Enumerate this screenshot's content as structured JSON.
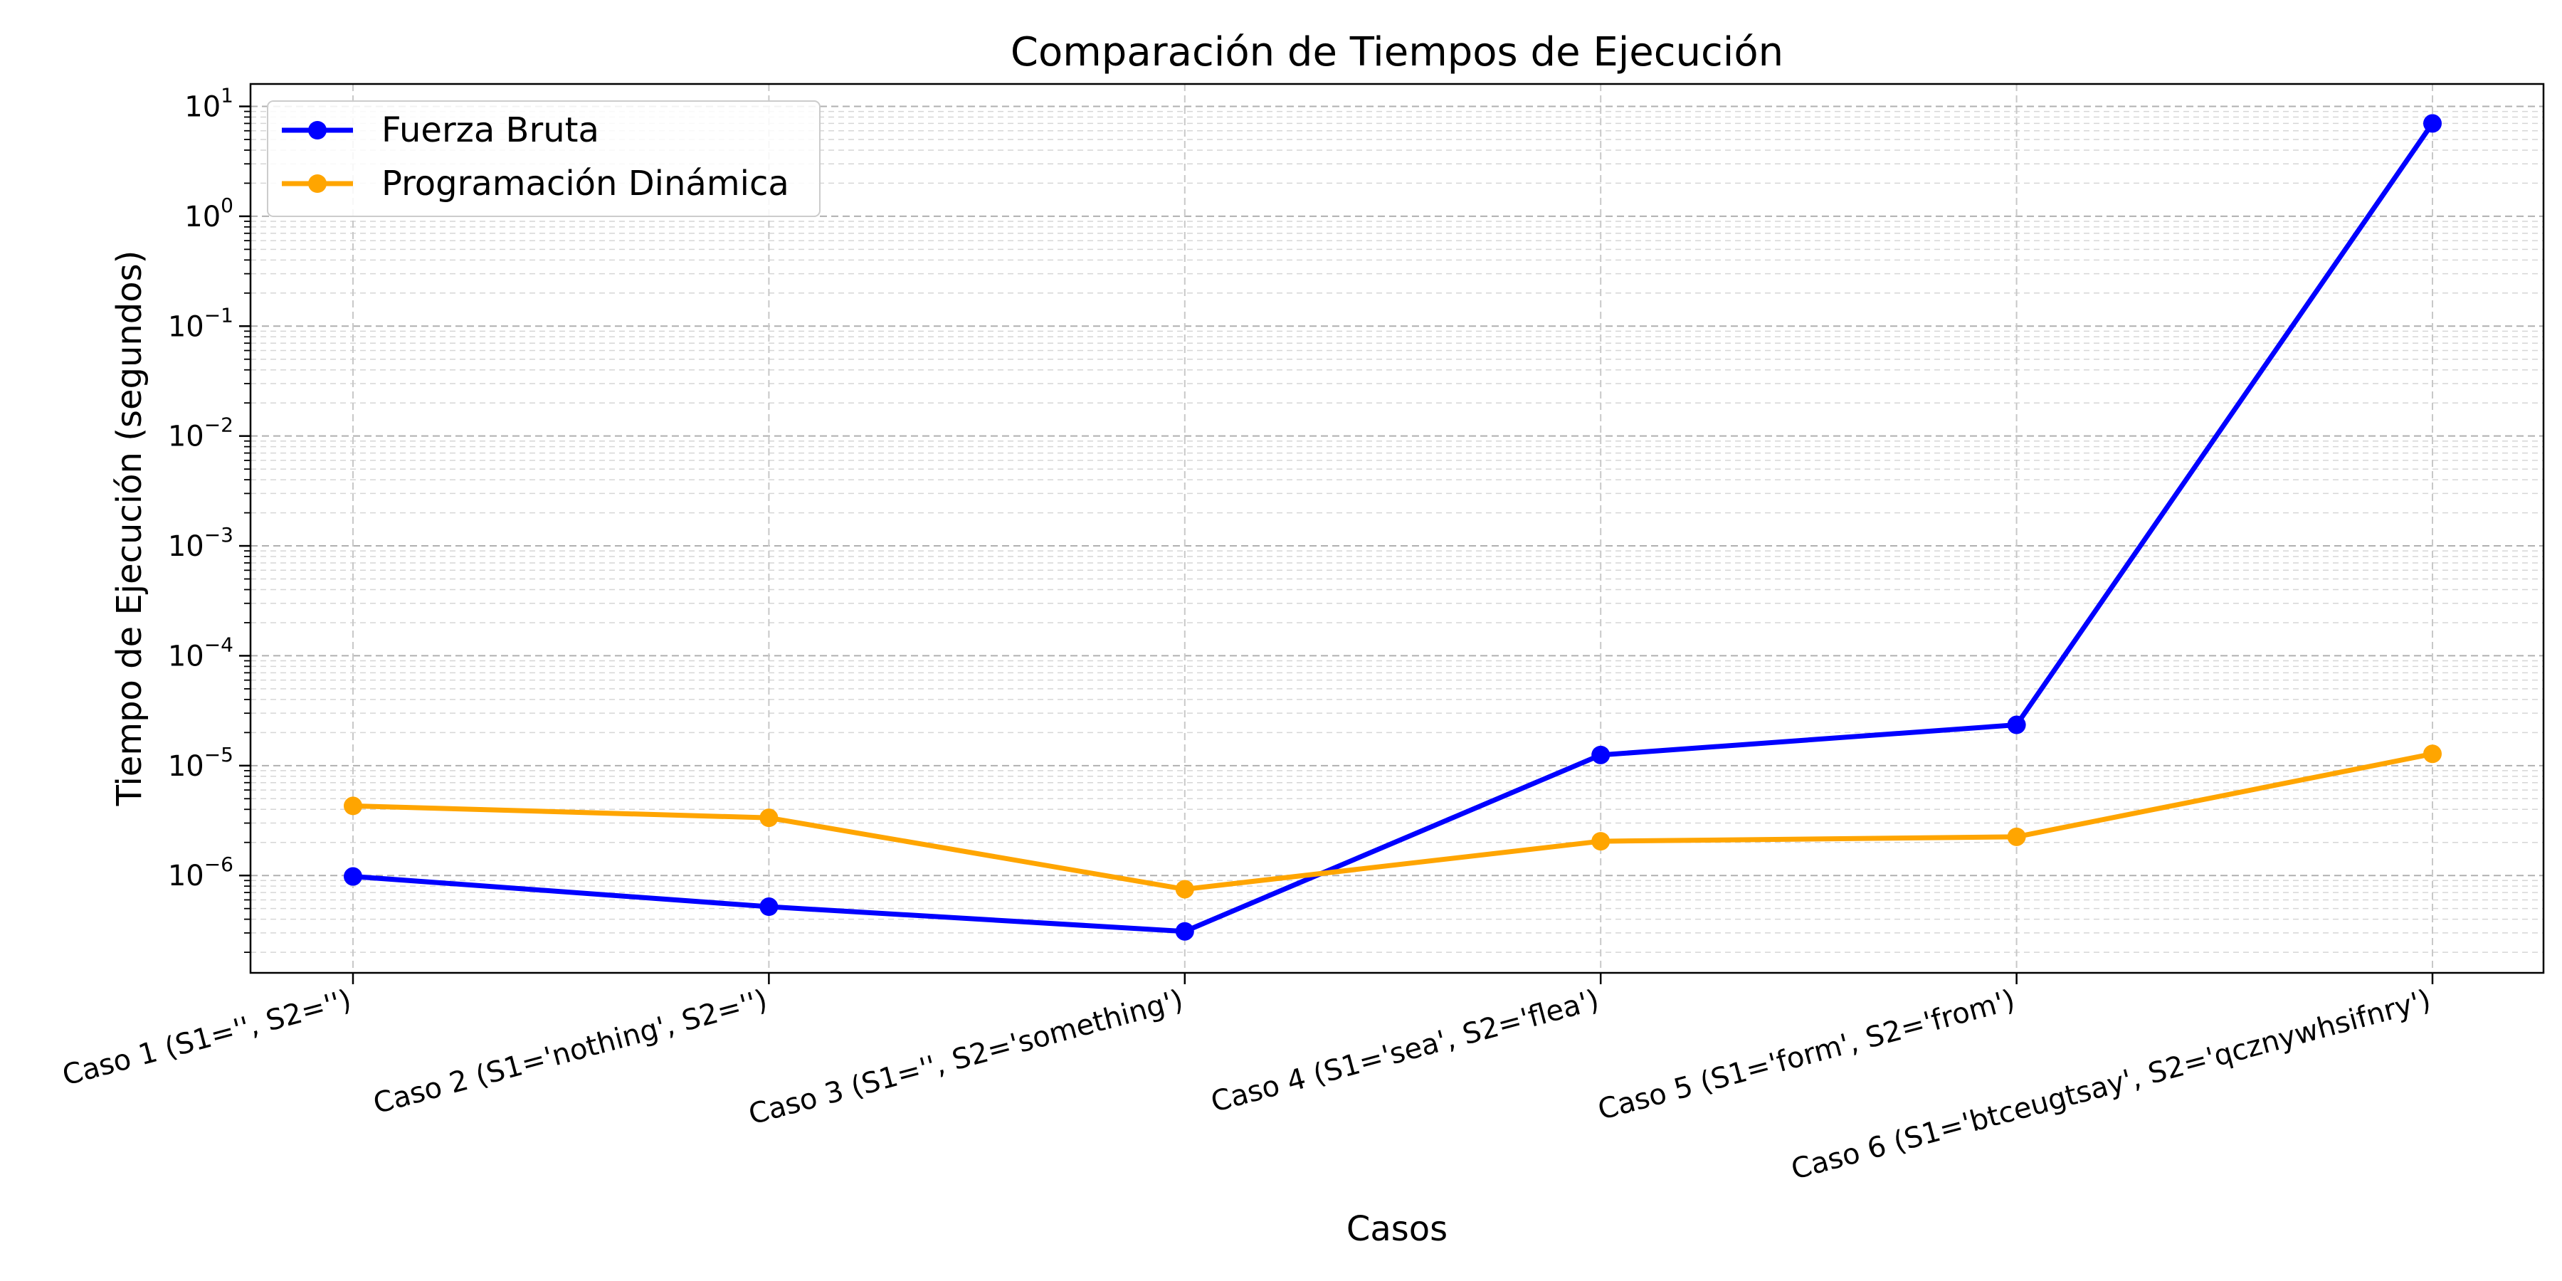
{
  "chart_data": {
    "type": "line",
    "title": "Comparación de Tiempos de Ejecución",
    "xlabel": "Casos",
    "ylabel": "Tiempo de Ejecución (segundos)",
    "yscale": "log",
    "ylim": [
      1.3e-07,
      16
    ],
    "y_tick_labels": [
      {
        "base": "10",
        "exp": "−6",
        "value": 1e-06
      },
      {
        "base": "10",
        "exp": "−5",
        "value": 1e-05
      },
      {
        "base": "10",
        "exp": "−4",
        "value": 0.0001
      },
      {
        "base": "10",
        "exp": "−3",
        "value": 0.001
      },
      {
        "base": "10",
        "exp": "−2",
        "value": 0.01
      },
      {
        "base": "10",
        "exp": "−1",
        "value": 0.1
      },
      {
        "base": "10",
        "exp": "0",
        "value": 1
      },
      {
        "base": "10",
        "exp": "1",
        "value": 10
      }
    ],
    "categories": [
      "Caso 1 (S1='', S2='')",
      "Caso 2 (S1='nothing', S2='')",
      "Caso 3 (S1='', S2='something')",
      "Caso 4 (S1='sea', S2='flea')",
      "Caso 5 (S1='form', S2='from')",
      "Caso 6 (S1='btceugtsay', S2='qcznywhsifnry')"
    ],
    "series": [
      {
        "name": "Fuerza Bruta",
        "color": "#0000ff",
        "values": [
          9.8e-07,
          5.2e-07,
          3.1e-07,
          1.25e-05,
          2.35e-05,
          7.0
        ]
      },
      {
        "name": "Programación Dinámica",
        "color": "#ffa500",
        "values": [
          4.3e-06,
          3.35e-06,
          7.5e-07,
          2.05e-06,
          2.25e-06,
          1.28e-05
        ]
      }
    ],
    "grid": true,
    "legend_position": "top-left"
  }
}
